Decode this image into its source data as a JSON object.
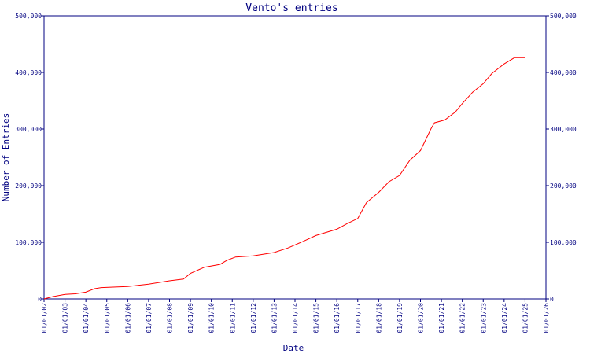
{
  "chart_data": {
    "type": "line",
    "title": "Vento's entries",
    "xlabel": "Date",
    "ylabel": "Number of Entries",
    "x_ticks": [
      "01/01/02",
      "01/01/03",
      "01/01/04",
      "01/01/05",
      "01/01/06",
      "01/01/07",
      "01/01/08",
      "01/01/09",
      "01/01/10",
      "01/01/11",
      "01/01/12",
      "01/01/13",
      "01/01/14",
      "01/01/15",
      "01/01/16",
      "01/01/17",
      "01/01/18",
      "01/01/19",
      "01/01/20",
      "01/01/21",
      "01/01/22",
      "01/01/23",
      "01/01/24",
      "01/01/25",
      "01/01/26"
    ],
    "y_ticks": [
      "0",
      "100,000",
      "200,000",
      "300,000",
      "400,000",
      "500,000"
    ],
    "y_tick_values": [
      0,
      100000,
      200000,
      300000,
      400000,
      500000
    ],
    "ylim": [
      0,
      500000
    ],
    "xlim": [
      "2002-01-01",
      "2026-01-01"
    ],
    "grid": false,
    "series": [
      {
        "color": "#ff0000",
        "points": [
          [
            "2002-01-01",
            0
          ],
          [
            "2002-06-01",
            4000
          ],
          [
            "2003-01-01",
            8000
          ],
          [
            "2003-07-01",
            9000
          ],
          [
            "2004-01-01",
            12000
          ],
          [
            "2004-06-01",
            18000
          ],
          [
            "2004-10-01",
            20000
          ],
          [
            "2005-06-01",
            21000
          ],
          [
            "2006-01-01",
            22000
          ],
          [
            "2007-01-01",
            26000
          ],
          [
            "2008-01-01",
            32000
          ],
          [
            "2008-09-01",
            35000
          ],
          [
            "2009-01-01",
            45000
          ],
          [
            "2009-09-01",
            56000
          ],
          [
            "2010-06-01",
            61000
          ],
          [
            "2010-10-01",
            68000
          ],
          [
            "2011-03-01",
            74000
          ],
          [
            "2012-01-01",
            76000
          ],
          [
            "2013-01-01",
            82000
          ],
          [
            "2013-09-01",
            90000
          ],
          [
            "2014-06-01",
            102000
          ],
          [
            "2015-01-01",
            112000
          ],
          [
            "2016-01-01",
            123000
          ],
          [
            "2016-07-01",
            133000
          ],
          [
            "2017-01-01",
            142000
          ],
          [
            "2017-06-01",
            170000
          ],
          [
            "2018-01-01",
            188000
          ],
          [
            "2018-07-01",
            207000
          ],
          [
            "2019-01-01",
            218000
          ],
          [
            "2019-07-01",
            245000
          ],
          [
            "2020-01-01",
            262000
          ],
          [
            "2020-07-01",
            300000
          ],
          [
            "2020-09-01",
            311000
          ],
          [
            "2021-03-01",
            316000
          ],
          [
            "2021-09-01",
            330000
          ],
          [
            "2022-01-01",
            345000
          ],
          [
            "2022-07-01",
            365000
          ],
          [
            "2023-01-01",
            380000
          ],
          [
            "2023-06-01",
            398000
          ],
          [
            "2024-01-01",
            415000
          ],
          [
            "2024-07-01",
            426000
          ],
          [
            "2025-01-01",
            426000
          ]
        ]
      }
    ]
  },
  "colors": {
    "axis": "#000080",
    "line": "#ff0000",
    "background": "#ffffff"
  }
}
